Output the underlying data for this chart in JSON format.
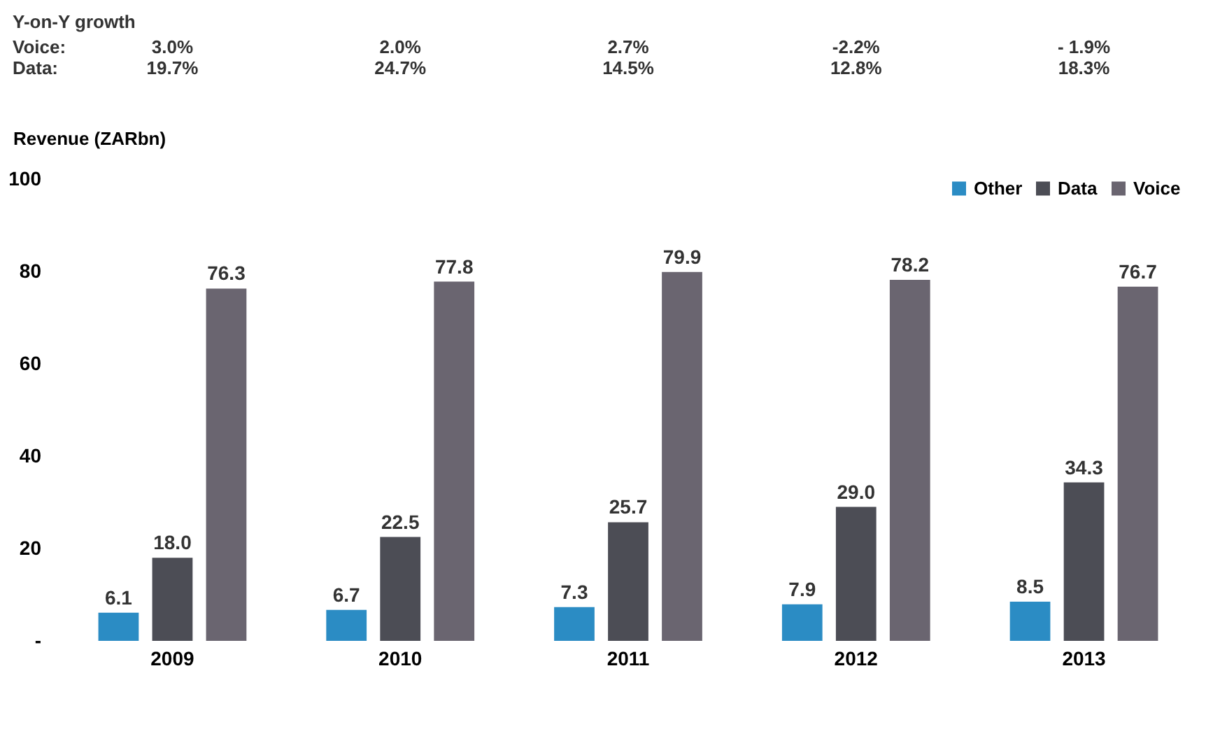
{
  "chart_data": {
    "type": "bar",
    "ylabel": "Revenue (ZARbn)",
    "categories": [
      "2009",
      "2010",
      "2011",
      "2012",
      "2013"
    ],
    "series": [
      {
        "name": "Other",
        "color": "#2b8cc4",
        "values": [
          6.1,
          6.7,
          7.3,
          7.9,
          8.5
        ],
        "value_labels": [
          "6.1",
          "6.7",
          "7.3",
          "7.9",
          "8.5"
        ]
      },
      {
        "name": "Data",
        "color": "#4c4d55",
        "values": [
          18.0,
          22.5,
          25.7,
          29.0,
          34.3
        ],
        "value_labels": [
          "18.0",
          "22.5",
          "25.7",
          "29.0",
          "34.3"
        ]
      },
      {
        "name": "Voice",
        "color": "#6a6570",
        "values": [
          76.3,
          77.8,
          79.9,
          78.2,
          76.7
        ],
        "value_labels": [
          "76.3",
          "77.8",
          "79.9",
          "78.2",
          "76.7"
        ]
      }
    ],
    "ylim": [
      0,
      100
    ],
    "yticks": [
      {
        "value": 0,
        "label": "-"
      },
      20,
      40,
      60,
      80,
      100
    ],
    "grid": false,
    "legend": "top right",
    "annotations": [
      "Y-on-Y growth",
      "Voice:",
      "3.0%",
      "2.0%",
      "2.7%",
      "-2.2%",
      "- 1.9%",
      "Data:",
      "19.7%",
      "24.7%",
      "14.5%",
      "12.8%",
      "18.3%"
    ]
  }
}
